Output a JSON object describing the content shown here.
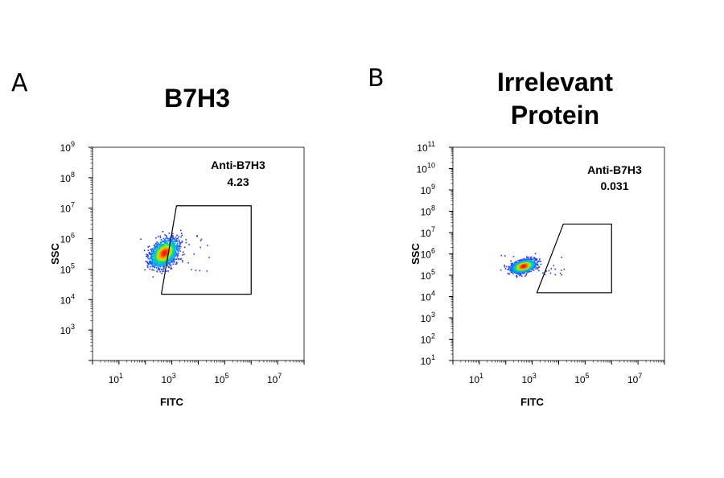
{
  "chart_data": [
    {
      "type": "scatter",
      "panel": "A",
      "title": "B7H3",
      "xlabel": "FITC",
      "ylabel": "SSC",
      "x_scale": "log",
      "y_scale": "log",
      "xlim": [
        1,
        100000000
      ],
      "ylim": [
        100,
        1000000000
      ],
      "x_ticks": [
        1,
        3,
        5,
        7
      ],
      "y_ticks": [
        3,
        4,
        5,
        6,
        7,
        8,
        9
      ],
      "population": {
        "x_center": 500,
        "y_center": 350000,
        "x_spread_decades": 0.45,
        "y_spread_decades": 0.45
      },
      "gate": {
        "name": "Anti-B7H3",
        "value": "4.23",
        "vertices": [
          [
            400,
            15000
          ],
          [
            1000000,
            15000
          ],
          [
            1000000,
            12000000
          ],
          [
            1500,
            12000000
          ]
        ]
      }
    },
    {
      "type": "scatter",
      "panel": "B",
      "title": "Irrelevant Protein",
      "title_lines": [
        "Irrelevant",
        "Protein"
      ],
      "xlabel": "FITC",
      "ylabel": "SSC",
      "x_scale": "log",
      "y_scale": "log",
      "xlim": [
        1,
        100000000
      ],
      "ylim": [
        10,
        100000000000
      ],
      "x_ticks": [
        1,
        3,
        5,
        7
      ],
      "y_ticks": [
        1,
        2,
        3,
        4,
        5,
        6,
        7,
        8,
        9,
        10,
        11
      ],
      "population": {
        "x_center": 450,
        "y_center": 280000,
        "x_spread_decades": 0.4,
        "y_spread_decades": 0.3
      },
      "gate": {
        "name": "Anti-B7H3",
        "value": "0.031",
        "vertices": [
          [
            1500,
            15000
          ],
          [
            1000000,
            15000
          ],
          [
            1000000,
            25000000
          ],
          [
            15000,
            25000000
          ]
        ]
      }
    }
  ]
}
